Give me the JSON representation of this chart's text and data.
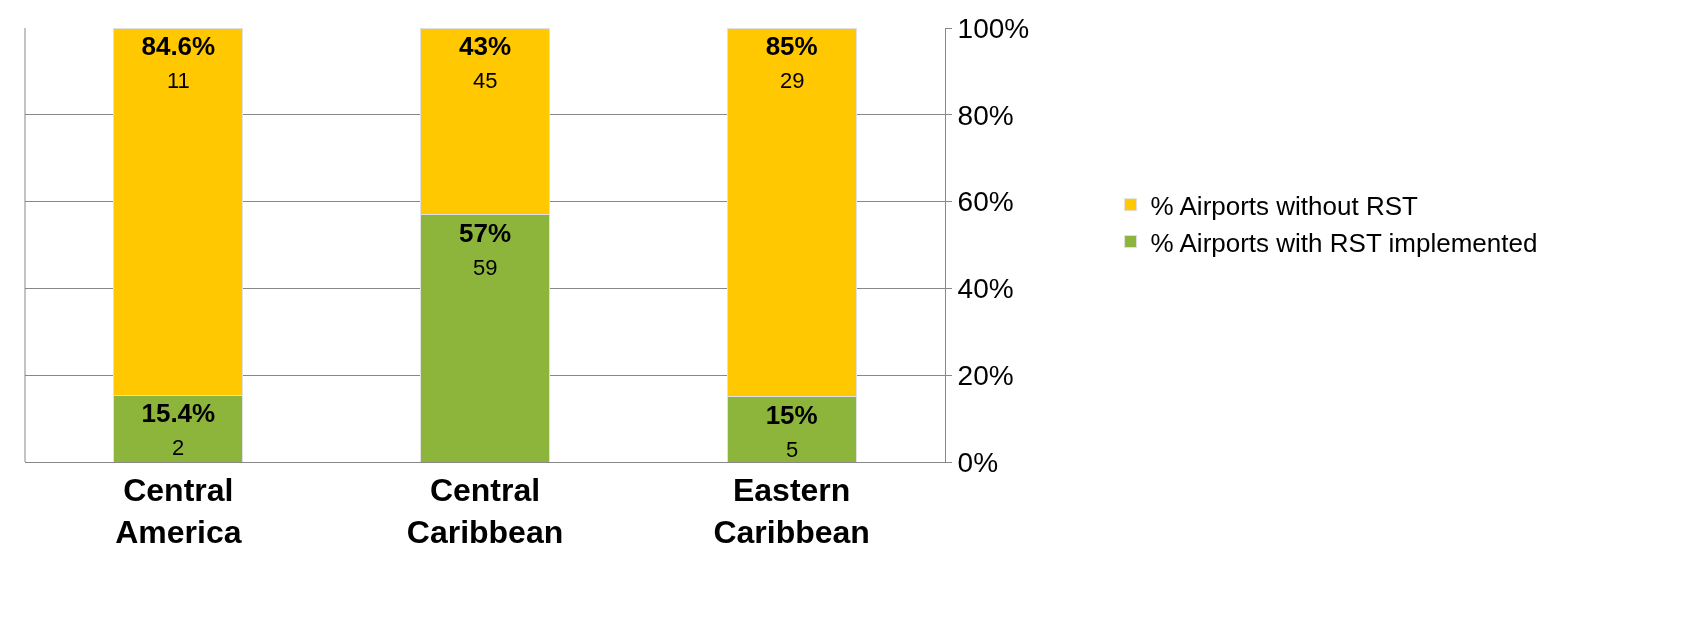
{
  "chart_data": {
    "type": "bar",
    "stacked": true,
    "categories": [
      "Central America",
      "Central Caribbean",
      "Eastern Caribbean"
    ],
    "series": [
      {
        "name": "% Airports with RST implemented",
        "color": "#8db53c",
        "values": [
          15.4,
          57,
          15
        ],
        "value_labels": [
          "15.4%",
          "57%",
          "15%"
        ]
      },
      {
        "name": "% Airports without RST",
        "color": "#ffc800",
        "values": [
          84.6,
          43,
          85
        ],
        "value_labels": [
          "84.6%",
          "43%",
          "85%"
        ]
      }
    ],
    "ylim": [
      0,
      100
    ],
    "yticks": [
      {
        "value": 0,
        "label": "0%"
      },
      {
        "value": 20,
        "label": "20%"
      },
      {
        "value": 40,
        "label": "40%"
      },
      {
        "value": 60,
        "label": "60%"
      },
      {
        "value": 80,
        "label": "80%"
      },
      {
        "value": 100,
        "label": "100%"
      }
    ],
    "annotations": [
      "2",
      "59",
      "5",
      "11",
      "45",
      "29"
    ],
    "grid": "y",
    "legend": "right"
  }
}
